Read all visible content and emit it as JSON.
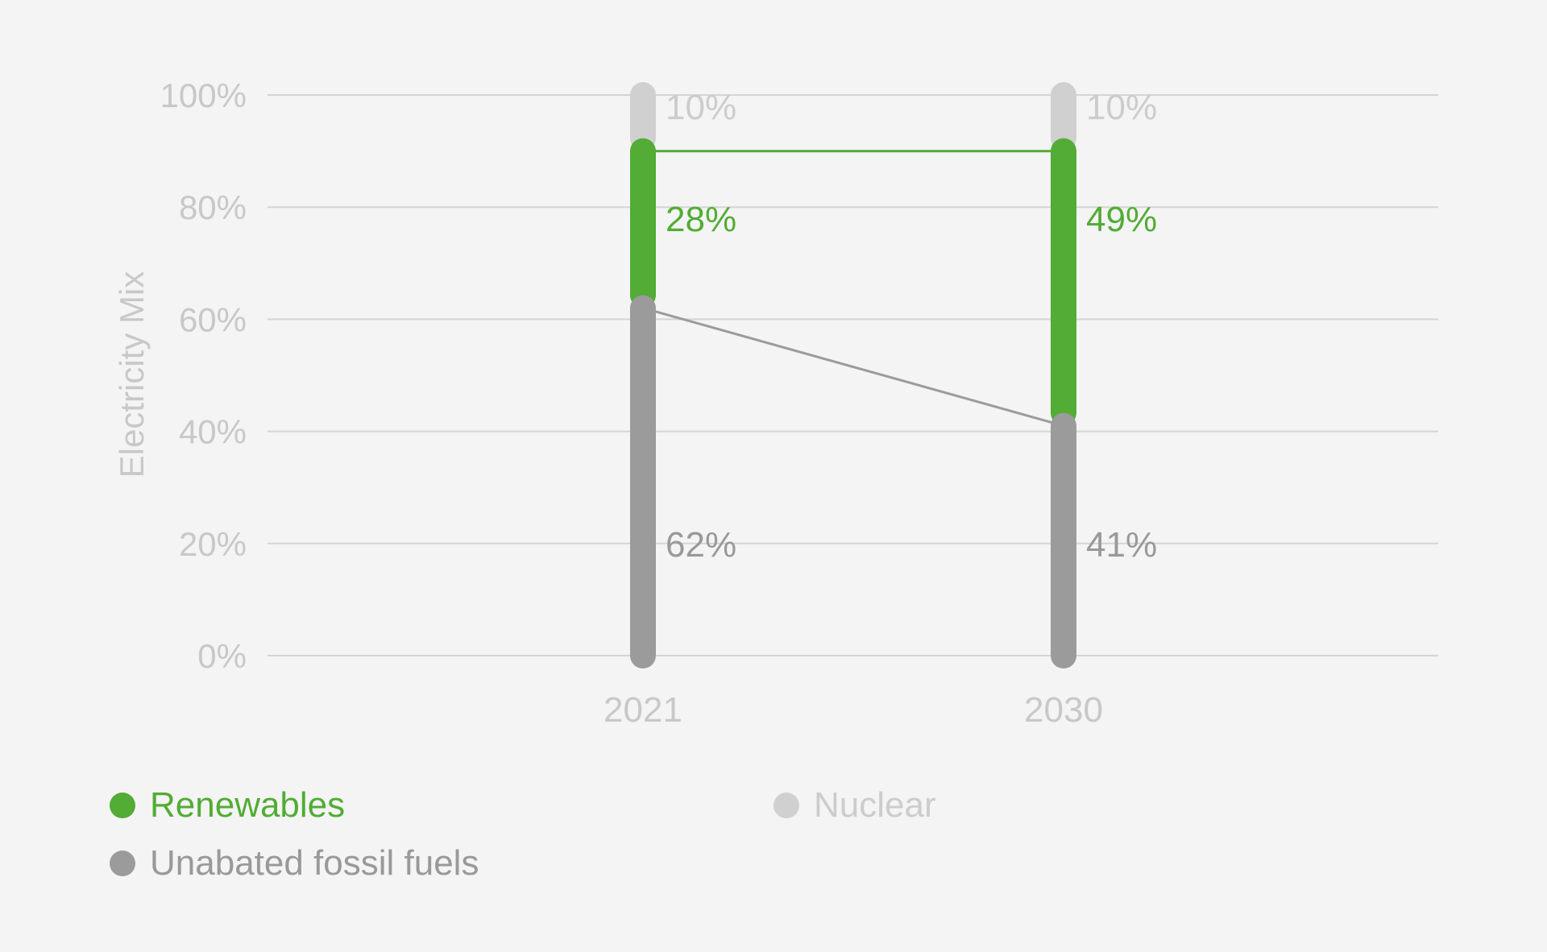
{
  "chart_data": {
    "type": "bar",
    "stacked": true,
    "ylabel": "Electricity Mix",
    "xlabel": "",
    "categories": [
      "2021",
      "2030"
    ],
    "ylim": [
      0,
      100
    ],
    "yticks": [
      0,
      20,
      40,
      60,
      80,
      100
    ],
    "ytick_labels": [
      "0%",
      "20%",
      "40%",
      "60%",
      "80%",
      "100%"
    ],
    "grid": true,
    "legend_position": "bottom-left",
    "series": [
      {
        "name": "Unabated fossil fuels",
        "values": [
          62,
          41
        ],
        "labels": [
          "62%",
          "41%"
        ],
        "color": "#9b9b9b"
      },
      {
        "name": "Renewables",
        "values": [
          28,
          49
        ],
        "labels": [
          "28%",
          "49%"
        ],
        "color": "#52ac35"
      },
      {
        "name": "Nuclear",
        "values": [
          10,
          10
        ],
        "labels": [
          "10%",
          "10%"
        ],
        "color": "#d0d0d0"
      }
    ],
    "connector_lines": true
  },
  "legend": {
    "renewables": "Renewables",
    "nuclear": "Nuclear",
    "fossil": "Unabated fossil fuels"
  },
  "colors": {
    "renewables": "#52ac35",
    "nuclear": "#d0d0d0",
    "fossil": "#9b9b9b",
    "axis_text": "#c8c8c8",
    "grid": "#d4d4d4"
  }
}
